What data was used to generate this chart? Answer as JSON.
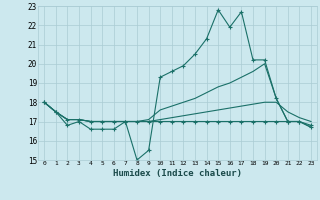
{
  "xlabel": "Humidex (Indice chaleur)",
  "xlim": [
    -0.5,
    23.5
  ],
  "ylim": [
    15,
    23
  ],
  "yticks": [
    15,
    16,
    17,
    18,
    19,
    20,
    21,
    22,
    23
  ],
  "xticks": [
    0,
    1,
    2,
    3,
    4,
    5,
    6,
    7,
    8,
    9,
    10,
    11,
    12,
    13,
    14,
    15,
    16,
    17,
    18,
    19,
    20,
    21,
    22,
    23
  ],
  "bg_color": "#cce8ee",
  "grid_color": "#aaccd4",
  "line_color": "#1a7068",
  "line1_x": [
    0,
    1,
    2,
    3,
    4,
    5,
    6,
    7,
    8,
    9,
    10,
    11,
    12,
    13,
    14,
    15,
    16,
    17,
    18,
    19,
    20,
    21,
    22,
    23
  ],
  "line1_y": [
    18.0,
    17.5,
    16.8,
    17.0,
    16.6,
    16.6,
    16.6,
    17.0,
    15.0,
    15.5,
    19.3,
    19.6,
    19.9,
    20.5,
    21.3,
    22.8,
    21.9,
    22.7,
    20.2,
    20.2,
    18.2,
    17.0,
    17.0,
    16.7
  ],
  "line2_x": [
    0,
    1,
    2,
    3,
    4,
    5,
    6,
    7,
    8,
    9,
    10,
    11,
    12,
    13,
    14,
    15,
    16,
    17,
    18,
    19,
    20,
    21,
    22,
    23
  ],
  "line2_y": [
    18.0,
    17.5,
    17.1,
    17.1,
    17.0,
    17.0,
    17.0,
    17.0,
    17.0,
    17.1,
    17.6,
    17.8,
    18.0,
    18.2,
    18.5,
    18.8,
    19.0,
    19.3,
    19.6,
    20.0,
    18.2,
    17.0,
    17.0,
    16.7
  ],
  "line3_x": [
    0,
    1,
    2,
    3,
    4,
    5,
    6,
    7,
    8,
    9,
    10,
    11,
    12,
    13,
    14,
    15,
    16,
    17,
    18,
    19,
    20,
    21,
    22,
    23
  ],
  "line3_y": [
    18.0,
    17.5,
    17.1,
    17.1,
    17.0,
    17.0,
    17.0,
    17.0,
    17.0,
    17.0,
    17.1,
    17.2,
    17.3,
    17.4,
    17.5,
    17.6,
    17.7,
    17.8,
    17.9,
    18.0,
    18.0,
    17.5,
    17.2,
    17.0
  ],
  "line4_x": [
    0,
    1,
    2,
    3,
    4,
    5,
    6,
    7,
    8,
    9,
    10,
    11,
    12,
    13,
    14,
    15,
    16,
    17,
    18,
    19,
    20,
    21,
    22,
    23
  ],
  "line4_y": [
    18.0,
    17.5,
    17.1,
    17.1,
    17.0,
    17.0,
    17.0,
    17.0,
    17.0,
    17.0,
    17.0,
    17.0,
    17.0,
    17.0,
    17.0,
    17.0,
    17.0,
    17.0,
    17.0,
    17.0,
    17.0,
    17.0,
    17.0,
    16.8
  ]
}
